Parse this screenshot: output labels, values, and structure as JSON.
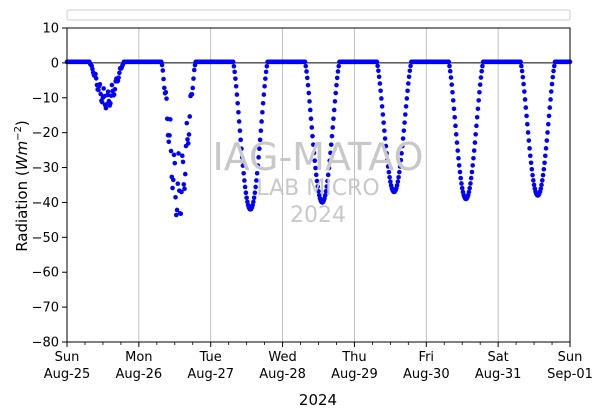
{
  "chart_data": {
    "type": "scatter",
    "xlabel": "2024",
    "ylabel_main": "Radiation (",
    "ylabel_unit": "Wm",
    "ylabel_exp": "−2",
    "ylabel_close": ")",
    "ylim": [
      -80,
      10
    ],
    "yticks": [
      10,
      0,
      -10,
      -20,
      -30,
      -40,
      -50,
      -60,
      -70,
      -80
    ],
    "xlim": [
      "2024-08-25",
      "2024-09-01"
    ],
    "xticks": [
      {
        "date": "2024-08-25",
        "day": "Sun",
        "date_label": "Aug-25"
      },
      {
        "date": "2024-08-26",
        "day": "Mon",
        "date_label": "Aug-26"
      },
      {
        "date": "2024-08-27",
        "day": "Tue",
        "date_label": "Aug-27"
      },
      {
        "date": "2024-08-28",
        "day": "Wed",
        "date_label": "Aug-28"
      },
      {
        "date": "2024-08-29",
        "day": "Thu",
        "date_label": "Aug-29"
      },
      {
        "date": "2024-08-30",
        "day": "Fri",
        "date_label": "Aug-30"
      },
      {
        "date": "2024-08-31",
        "day": "Sat",
        "date_label": "Aug-31"
      },
      {
        "date": "2024-09-01",
        "day": "Sun",
        "date_label": "Sep-01"
      }
    ],
    "grid": "vertical",
    "legend": "empty box above plot",
    "reference_line_y": 0,
    "series_color": "#0000ff",
    "daily_minima": [
      {
        "date": "2024-08-25",
        "min": -13
      },
      {
        "date": "2024-08-26",
        "min": -45
      },
      {
        "date": "2024-08-27",
        "min": -42
      },
      {
        "date": "2024-08-28",
        "min": -40
      },
      {
        "date": "2024-08-29",
        "min": -37
      },
      {
        "date": "2024-08-30",
        "min": -39
      },
      {
        "date": "2024-08-31",
        "min": -38
      }
    ],
    "watermark": [
      "IAG-MATAO",
      "LAB MICRO",
      "2024"
    ]
  }
}
